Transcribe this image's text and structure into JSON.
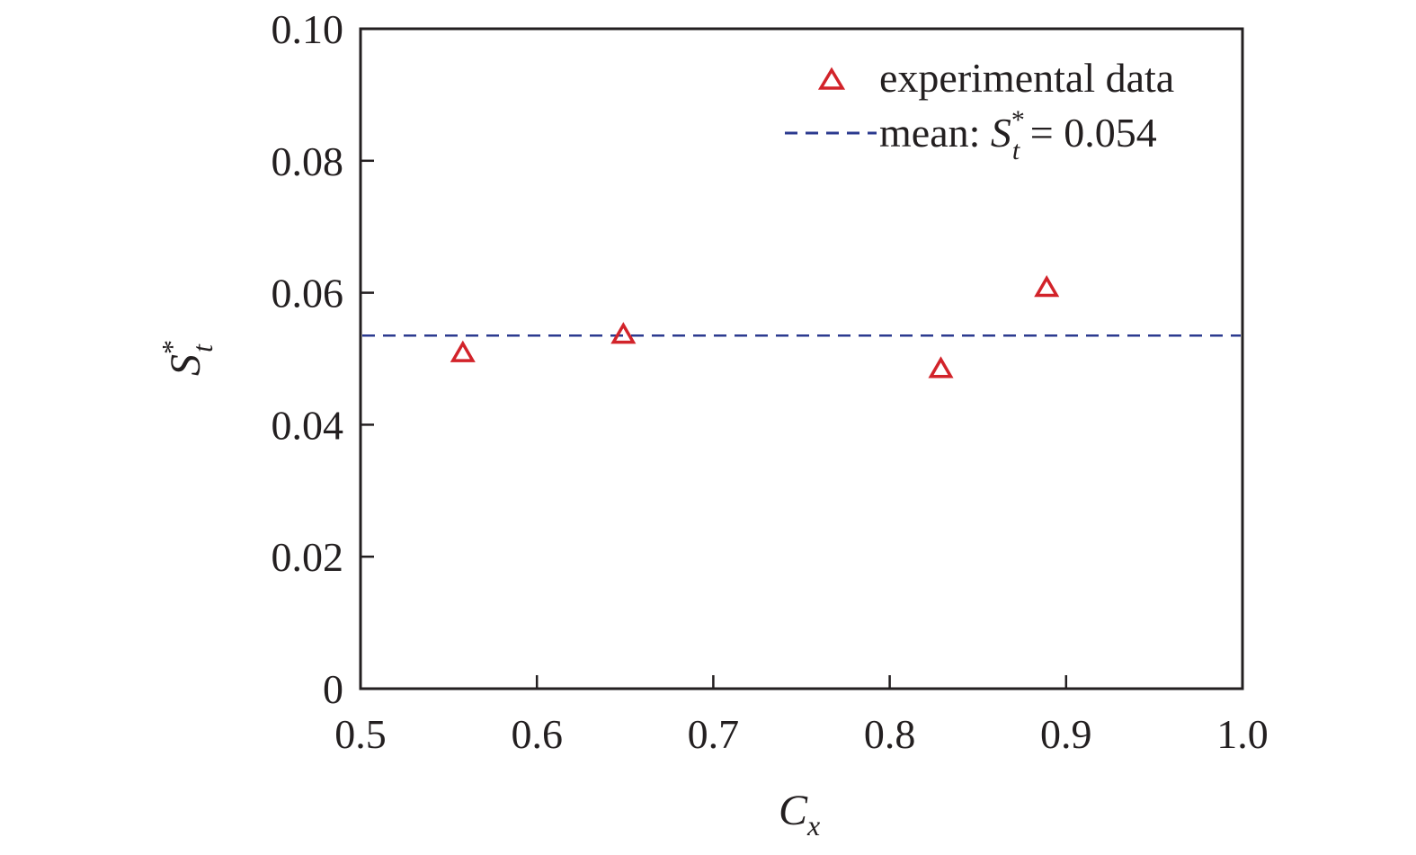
{
  "chart_data": {
    "type": "scatter",
    "xlabel": {
      "main": "C",
      "sub": "x"
    },
    "ylabel": {
      "main": "S",
      "sup": "*",
      "sub": "t"
    },
    "xlim": [
      0.5,
      1.0
    ],
    "ylim": [
      0,
      0.1
    ],
    "x_ticks": [
      "0.5",
      "0.6",
      "0.7",
      "0.8",
      "0.9",
      "1.0"
    ],
    "y_ticks": [
      "0",
      "0.02",
      "0.04",
      "0.06",
      "0.08",
      "0.10"
    ],
    "series": [
      {
        "name": "experimental data",
        "marker": "triangle-open",
        "color": "#d2232a",
        "x": [
          0.558,
          0.649,
          0.829,
          0.889
        ],
        "y": [
          0.0508,
          0.0536,
          0.0484,
          0.0607
        ]
      }
    ],
    "reference_line": {
      "type": "horizontal-dashed",
      "y": 0.0535,
      "color": "#2b3a8f",
      "label": {
        "prefix": "mean: ",
        "main": "S",
        "sup": "*",
        "sub": "t",
        "suffix": " = 0.054"
      }
    },
    "legend": {
      "position": "top-right"
    },
    "grid": false
  }
}
